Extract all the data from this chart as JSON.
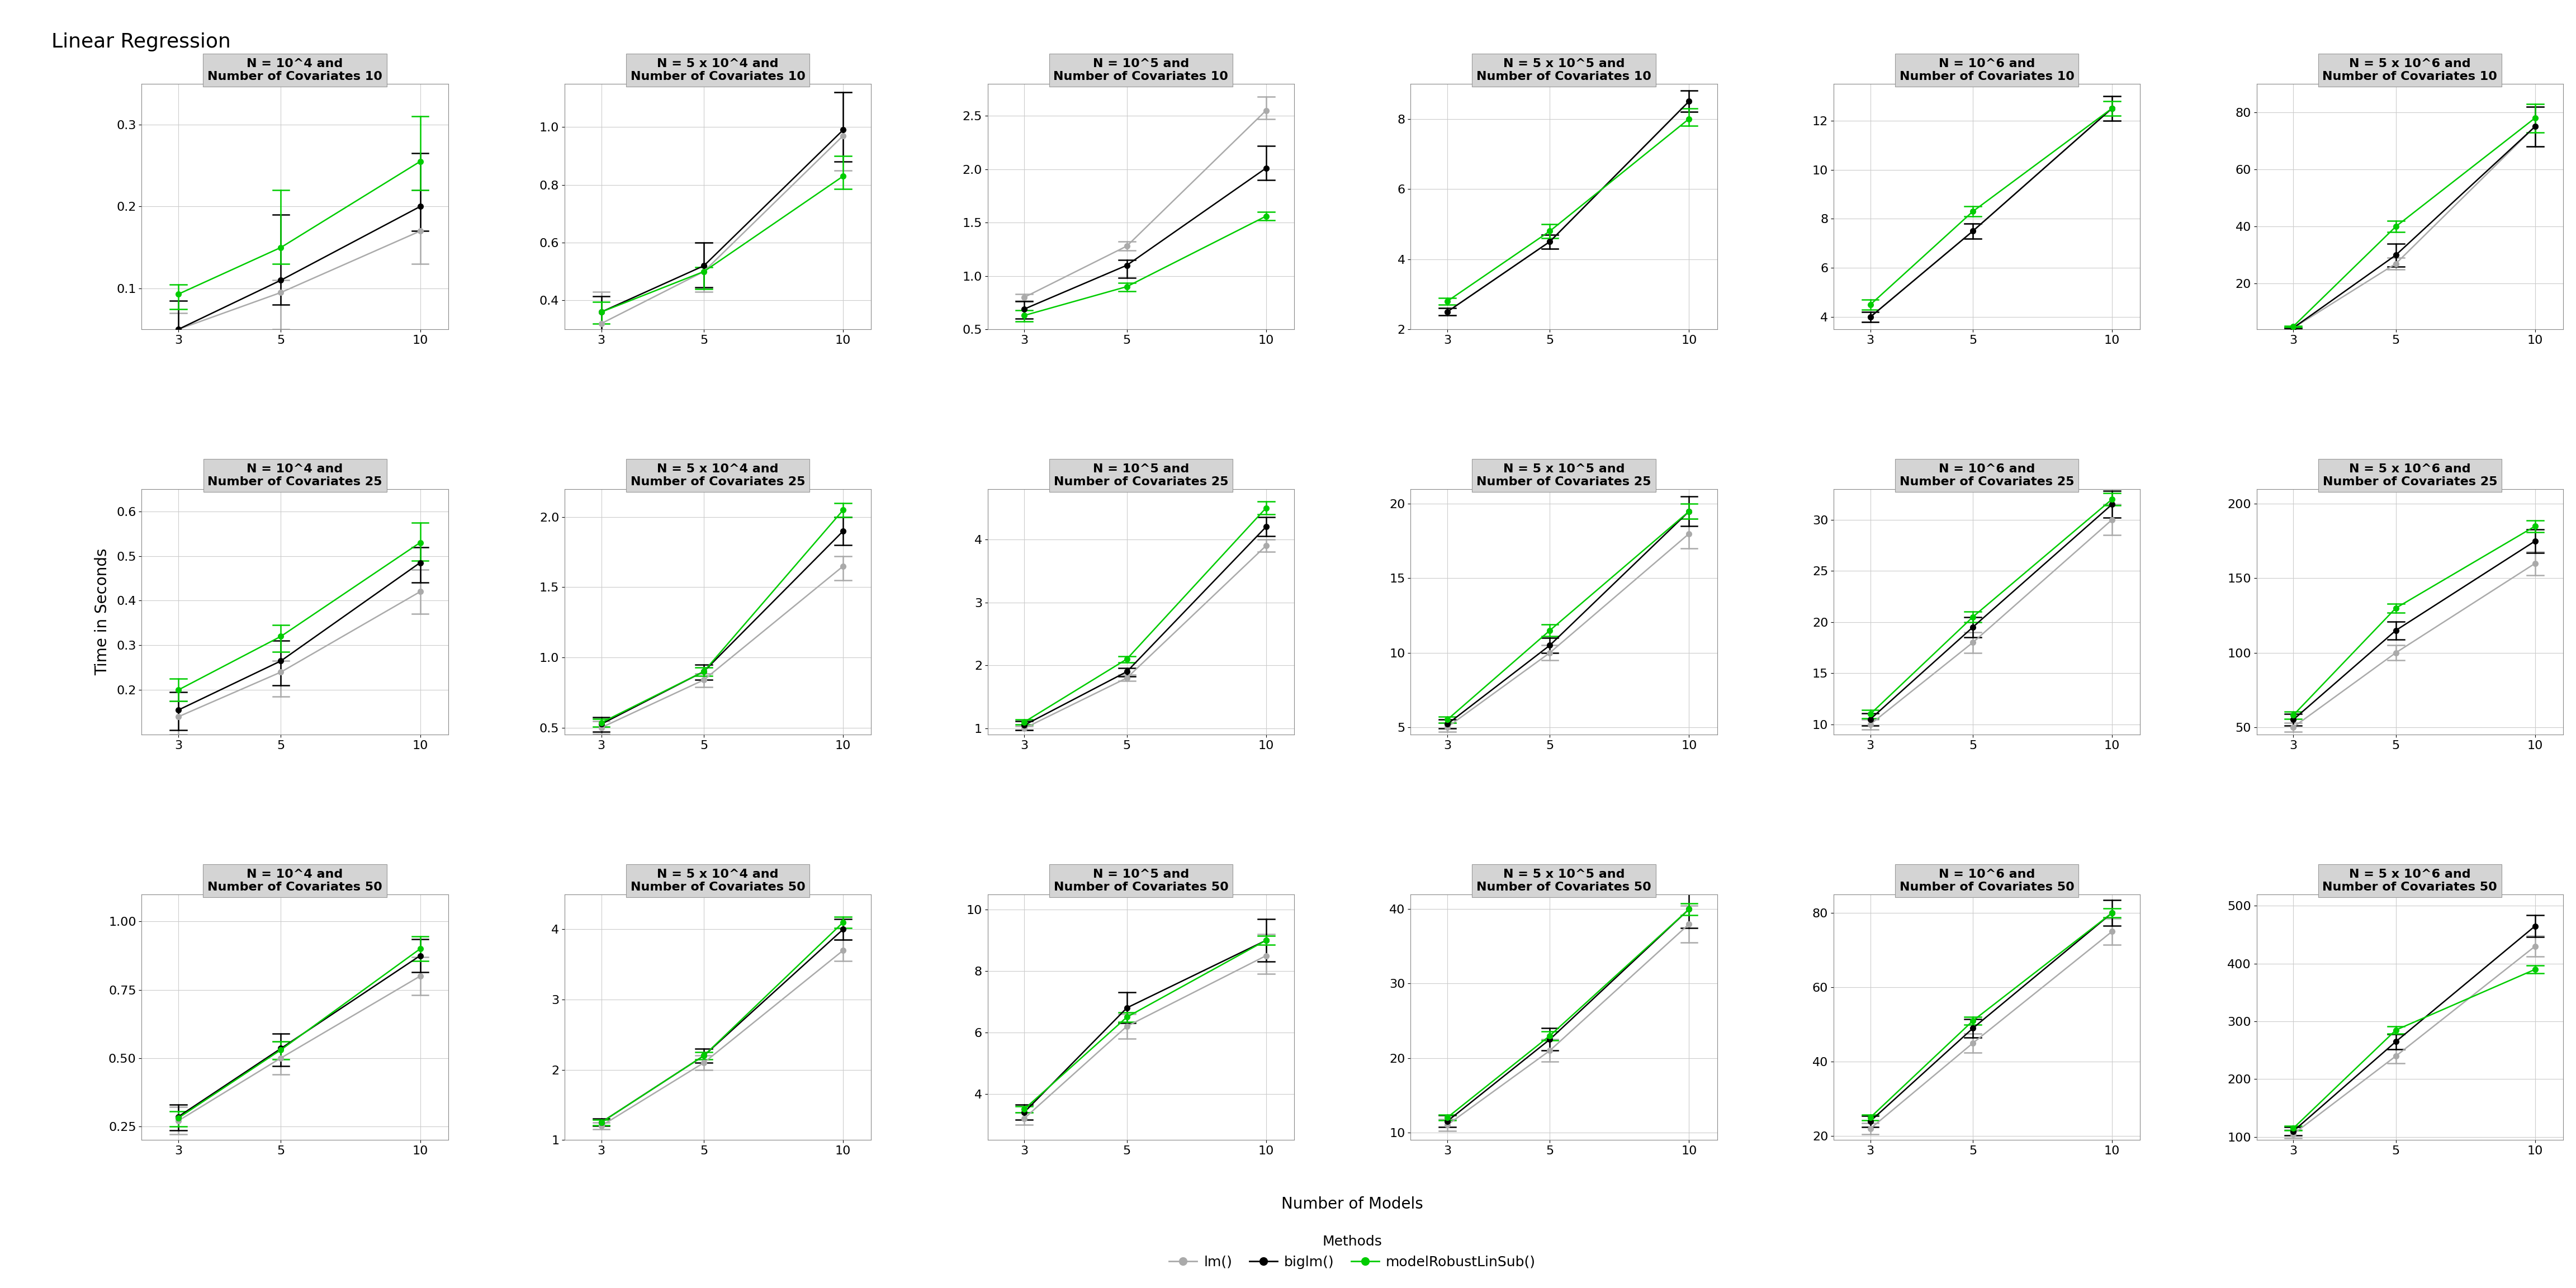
{
  "title": "Linear Regression",
  "xlabel": "Number of Models",
  "ylabel": "Time in Seconds",
  "x_values": [
    3,
    5,
    10
  ],
  "method_colors": [
    "#aaaaaa",
    "#000000",
    "#00cc00"
  ],
  "row_covariates": [
    10,
    25,
    50
  ],
  "col_ns": [
    "10^4",
    "5 x 10^4",
    "10^5",
    "5 x 10^5",
    "10^6",
    "5 x 10^6"
  ],
  "data": {
    "10_10^4": {
      "lm": {
        "mean": [
          0.05,
          0.095,
          0.17
        ],
        "lo": [
          0.03,
          0.05,
          0.13
        ],
        "hi": [
          0.07,
          0.11,
          0.22
        ]
      },
      "biglm": {
        "mean": [
          0.05,
          0.11,
          0.2
        ],
        "lo": [
          0.025,
          0.08,
          0.17
        ],
        "hi": [
          0.085,
          0.19,
          0.265
        ]
      },
      "robust": {
        "mean": [
          0.093,
          0.15,
          0.255
        ],
        "lo": [
          0.075,
          0.13,
          0.22
        ],
        "hi": [
          0.105,
          0.22,
          0.31
        ]
      },
      "ylim": [
        0.05,
        0.35
      ],
      "yticks": [
        0.1,
        0.2,
        0.3
      ]
    },
    "10_5 x 10^4": {
      "lm": {
        "mean": [
          0.32,
          0.5,
          0.97
        ],
        "lo": [
          0.25,
          0.43,
          0.85
        ],
        "hi": [
          0.43,
          0.6,
          1.12
        ]
      },
      "biglm": {
        "mean": [
          0.36,
          0.52,
          0.99
        ],
        "lo": [
          0.285,
          0.445,
          0.88
        ],
        "hi": [
          0.415,
          0.6,
          1.12
        ]
      },
      "robust": {
        "mean": [
          0.36,
          0.5,
          0.83
        ],
        "lo": [
          0.32,
          0.44,
          0.785
        ],
        "hi": [
          0.395,
          0.515,
          0.9
        ]
      },
      "ylim": [
        0.3,
        1.15
      ],
      "yticks": [
        0.4,
        0.6,
        0.8,
        1.0
      ]
    },
    "10_10^5": {
      "lm": {
        "mean": [
          0.8,
          1.28,
          2.55
        ],
        "lo": [
          0.77,
          1.24,
          2.47
        ],
        "hi": [
          0.83,
          1.32,
          2.68
        ]
      },
      "biglm": {
        "mean": [
          0.69,
          1.1,
          2.01
        ],
        "lo": [
          0.6,
          0.98,
          1.9
        ],
        "hi": [
          0.76,
          1.15,
          2.22
        ]
      },
      "robust": {
        "mean": [
          0.63,
          0.9,
          1.56
        ],
        "lo": [
          0.575,
          0.855,
          1.52
        ],
        "hi": [
          0.68,
          0.935,
          1.6
        ]
      },
      "ylim": [
        0.5,
        2.8
      ],
      "yticks": [
        0.5,
        1.0,
        1.5,
        2.0,
        2.5
      ]
    },
    "10_5 x 10^5": {
      "lm": {
        "mean": [
          2.5,
          4.5,
          8.5
        ],
        "lo": [
          2.4,
          4.3,
          8.2
        ],
        "hi": [
          2.6,
          4.7,
          8.8
        ]
      },
      "biglm": {
        "mean": [
          2.5,
          4.5,
          8.5
        ],
        "lo": [
          2.4,
          4.3,
          8.2
        ],
        "hi": [
          2.6,
          4.7,
          8.8
        ]
      },
      "robust": {
        "mean": [
          2.8,
          4.8,
          8.0
        ],
        "lo": [
          2.7,
          4.6,
          7.8
        ],
        "hi": [
          2.9,
          5.0,
          8.3
        ]
      },
      "ylim": [
        2,
        9
      ],
      "yticks": [
        2,
        4,
        6,
        8
      ]
    },
    "10_10^6": {
      "lm": {
        "mean": [
          4.0,
          7.5,
          12.5
        ],
        "lo": [
          3.8,
          7.2,
          12.0
        ],
        "hi": [
          4.2,
          7.8,
          13.0
        ]
      },
      "biglm": {
        "mean": [
          4.0,
          7.5,
          12.5
        ],
        "lo": [
          3.8,
          7.2,
          12.0
        ],
        "hi": [
          4.2,
          7.8,
          13.0
        ]
      },
      "robust": {
        "mean": [
          4.5,
          8.3,
          12.5
        ],
        "lo": [
          4.3,
          8.1,
          12.2
        ],
        "hi": [
          4.7,
          8.5,
          12.8
        ]
      },
      "ylim": [
        3.5,
        13.5
      ],
      "yticks": [
        4,
        6,
        8,
        10,
        12
      ]
    },
    "10_5 x 10^6": {
      "lm": {
        "mean": [
          4.5,
          27.0,
          75.0
        ],
        "lo": [
          4.3,
          25.0,
          68.0
        ],
        "hi": [
          4.7,
          29.0,
          82.0
        ]
      },
      "biglm": {
        "mean": [
          4.5,
          30.0,
          75.0
        ],
        "lo": [
          4.3,
          26.0,
          68.0
        ],
        "hi": [
          4.7,
          34.0,
          82.0
        ]
      },
      "robust": {
        "mean": [
          5.0,
          40.0,
          78.0
        ],
        "lo": [
          4.8,
          38.0,
          73.0
        ],
        "hi": [
          5.2,
          42.0,
          83.0
        ]
      },
      "ylim": [
        4,
        90
      ],
      "yticks": [
        20,
        40,
        60,
        80
      ]
    },
    "25_10^4": {
      "lm": {
        "mean": [
          0.14,
          0.24,
          0.42
        ],
        "lo": [
          0.1,
          0.185,
          0.37
        ],
        "hi": [
          0.175,
          0.265,
          0.47
        ]
      },
      "biglm": {
        "mean": [
          0.155,
          0.265,
          0.485
        ],
        "lo": [
          0.11,
          0.21,
          0.44
        ],
        "hi": [
          0.195,
          0.31,
          0.52
        ]
      },
      "robust": {
        "mean": [
          0.2,
          0.32,
          0.53
        ],
        "lo": [
          0.175,
          0.285,
          0.49
        ],
        "hi": [
          0.225,
          0.345,
          0.575
        ]
      },
      "ylim": [
        0.1,
        0.65
      ],
      "yticks": [
        0.2,
        0.3,
        0.4,
        0.5,
        0.6
      ]
    },
    "25_5 x 10^4": {
      "lm": {
        "mean": [
          0.5,
          0.84,
          1.65
        ],
        "lo": [
          0.455,
          0.79,
          1.55
        ],
        "hi": [
          0.545,
          0.885,
          1.72
        ]
      },
      "biglm": {
        "mean": [
          0.525,
          0.9,
          1.9
        ],
        "lo": [
          0.47,
          0.84,
          1.8
        ],
        "hi": [
          0.575,
          0.95,
          2.0
        ]
      },
      "robust": {
        "mean": [
          0.535,
          0.9,
          2.05
        ],
        "lo": [
          0.505,
          0.87,
          2.0
        ],
        "hi": [
          0.56,
          0.93,
          2.1
        ]
      },
      "ylim": [
        0.45,
        2.2
      ],
      "yticks": [
        0.5,
        1.0,
        1.5,
        2.0
      ]
    },
    "25_10^5": {
      "lm": {
        "mean": [
          1.0,
          1.8,
          3.9
        ],
        "lo": [
          0.97,
          1.75,
          3.8
        ],
        "hi": [
          1.03,
          1.85,
          4.0
        ]
      },
      "biglm": {
        "mean": [
          1.05,
          1.9,
          4.2
        ],
        "lo": [
          0.97,
          1.82,
          4.05
        ],
        "hi": [
          1.11,
          1.96,
          4.35
        ]
      },
      "robust": {
        "mean": [
          1.1,
          2.1,
          4.5
        ],
        "lo": [
          1.06,
          2.05,
          4.4
        ],
        "hi": [
          1.14,
          2.14,
          4.6
        ]
      },
      "ylim": [
        0.9,
        4.8
      ],
      "yticks": [
        1,
        2,
        3,
        4
      ]
    },
    "25_5 x 10^5": {
      "lm": {
        "mean": [
          5.0,
          10.0,
          18.0
        ],
        "lo": [
          4.7,
          9.5,
          17.0
        ],
        "hi": [
          5.3,
          10.5,
          19.0
        ]
      },
      "biglm": {
        "mean": [
          5.2,
          10.5,
          19.5
        ],
        "lo": [
          4.9,
          10.0,
          18.5
        ],
        "hi": [
          5.5,
          11.0,
          20.5
        ]
      },
      "robust": {
        "mean": [
          5.5,
          11.5,
          19.5
        ],
        "lo": [
          5.3,
          11.1,
          19.0
        ],
        "hi": [
          5.7,
          11.9,
          20.0
        ]
      },
      "ylim": [
        4.5,
        21
      ],
      "yticks": [
        5,
        10,
        15,
        20
      ]
    },
    "25_10^6": {
      "lm": {
        "mean": [
          10.0,
          18.0,
          30.0
        ],
        "lo": [
          9.5,
          17.0,
          28.5
        ],
        "hi": [
          10.5,
          19.0,
          31.5
        ]
      },
      "biglm": {
        "mean": [
          10.5,
          19.5,
          31.5
        ],
        "lo": [
          9.9,
          18.5,
          30.2
        ],
        "hi": [
          11.1,
          20.5,
          32.8
        ]
      },
      "robust": {
        "mean": [
          11.0,
          20.5,
          32.0
        ],
        "lo": [
          10.6,
          20.0,
          31.4
        ],
        "hi": [
          11.4,
          21.0,
          32.6
        ]
      },
      "ylim": [
        9,
        33
      ],
      "yticks": [
        10,
        15,
        20,
        25,
        30
      ]
    },
    "25_5 x 10^6": {
      "lm": {
        "mean": [
          50.0,
          100.0,
          160.0
        ],
        "lo": [
          47.0,
          95.0,
          152.0
        ],
        "hi": [
          53.0,
          105.0,
          168.0
        ]
      },
      "biglm": {
        "mean": [
          55.0,
          115.0,
          175.0
        ],
        "lo": [
          51.0,
          109.0,
          167.0
        ],
        "hi": [
          59.0,
          121.0,
          183.0
        ]
      },
      "robust": {
        "mean": [
          58.0,
          130.0,
          185.0
        ],
        "lo": [
          55.5,
          127.0,
          181.0
        ],
        "hi": [
          60.5,
          133.0,
          189.0
        ]
      },
      "ylim": [
        45,
        210
      ],
      "yticks": [
        50,
        100,
        150,
        200
      ]
    },
    "50_10^4": {
      "lm": {
        "mean": [
          0.27,
          0.5,
          0.8
        ],
        "lo": [
          0.22,
          0.44,
          0.73
        ],
        "hi": [
          0.32,
          0.56,
          0.87
        ]
      },
      "biglm": {
        "mean": [
          0.285,
          0.535,
          0.875
        ],
        "lo": [
          0.235,
          0.47,
          0.815
        ],
        "hi": [
          0.33,
          0.59,
          0.935
        ]
      },
      "robust": {
        "mean": [
          0.28,
          0.53,
          0.9
        ],
        "lo": [
          0.25,
          0.495,
          0.855
        ],
        "hi": [
          0.305,
          0.56,
          0.945
        ]
      },
      "ylim": [
        0.2,
        1.1
      ],
      "yticks": [
        0.25,
        0.5,
        0.75,
        1.0
      ]
    },
    "50_5 x 10^4": {
      "lm": {
        "mean": [
          1.2,
          2.1,
          3.7
        ],
        "lo": [
          1.15,
          2.0,
          3.55
        ],
        "hi": [
          1.25,
          2.2,
          3.85
        ]
      },
      "biglm": {
        "mean": [
          1.25,
          2.2,
          4.0
        ],
        "lo": [
          1.2,
          2.1,
          3.85
        ],
        "hi": [
          1.3,
          2.3,
          4.15
        ]
      },
      "robust": {
        "mean": [
          1.25,
          2.2,
          4.1
        ],
        "lo": [
          1.21,
          2.15,
          4.02
        ],
        "hi": [
          1.29,
          2.25,
          4.18
        ]
      },
      "ylim": [
        1.0,
        4.5
      ],
      "yticks": [
        1,
        2,
        3,
        4
      ]
    },
    "50_10^5": {
      "lm": {
        "mean": [
          3.2,
          6.2,
          8.5
        ],
        "lo": [
          3.0,
          5.8,
          7.9
        ],
        "hi": [
          3.4,
          6.6,
          9.2
        ]
      },
      "biglm": {
        "mean": [
          3.4,
          6.8,
          9.0
        ],
        "lo": [
          3.15,
          6.3,
          8.3
        ],
        "hi": [
          3.65,
          7.3,
          9.7
        ]
      },
      "robust": {
        "mean": [
          3.5,
          6.5,
          9.0
        ],
        "lo": [
          3.4,
          6.35,
          8.85
        ],
        "hi": [
          3.6,
          6.65,
          9.15
        ]
      },
      "ylim": [
        2.5,
        10.5
      ],
      "yticks": [
        4,
        6,
        8,
        10
      ]
    },
    "50_5 x 10^5": {
      "lm": {
        "mean": [
          11.0,
          21.0,
          38.0
        ],
        "lo": [
          10.2,
          19.5,
          35.5
        ],
        "hi": [
          11.8,
          22.5,
          40.5
        ]
      },
      "biglm": {
        "mean": [
          11.5,
          22.5,
          40.0
        ],
        "lo": [
          10.7,
          21.0,
          37.5
        ],
        "hi": [
          12.3,
          24.0,
          42.5
        ]
      },
      "robust": {
        "mean": [
          12.0,
          23.0,
          40.0
        ],
        "lo": [
          11.6,
          22.4,
          39.2
        ],
        "hi": [
          12.4,
          23.6,
          40.8
        ]
      },
      "ylim": [
        9,
        42
      ],
      "yticks": [
        10,
        20,
        30,
        40
      ]
    },
    "50_10^6": {
      "lm": {
        "mean": [
          22.0,
          45.0,
          75.0
        ],
        "lo": [
          20.5,
          42.5,
          71.5
        ],
        "hi": [
          23.5,
          47.5,
          78.5
        ]
      },
      "biglm": {
        "mean": [
          24.0,
          49.0,
          80.0
        ],
        "lo": [
          22.5,
          46.5,
          76.5
        ],
        "hi": [
          25.5,
          51.5,
          83.5
        ]
      },
      "robust": {
        "mean": [
          25.0,
          51.0,
          80.0
        ],
        "lo": [
          24.2,
          50.0,
          78.8
        ],
        "hi": [
          25.8,
          52.0,
          81.2
        ]
      },
      "ylim": [
        19,
        85
      ],
      "yticks": [
        20,
        40,
        60,
        80
      ]
    },
    "50_5 x 10^6": {
      "lm": {
        "mean": [
          105.0,
          240.0,
          430.0
        ],
        "lo": [
          98.0,
          228.0,
          412.0
        ],
        "hi": [
          112.0,
          252.0,
          448.0
        ]
      },
      "biglm": {
        "mean": [
          110.0,
          265.0,
          465.0
        ],
        "lo": [
          103.0,
          252.0,
          446.0
        ],
        "hi": [
          117.0,
          278.0,
          484.0
        ]
      },
      "robust": {
        "mean": [
          115.0,
          285.0,
          390.0
        ],
        "lo": [
          111.0,
          279.0,
          383.0
        ],
        "hi": [
          119.0,
          291.0,
          397.0
        ]
      },
      "ylim": [
        95,
        520
      ],
      "yticks": [
        100,
        200,
        300,
        400,
        500
      ]
    }
  }
}
